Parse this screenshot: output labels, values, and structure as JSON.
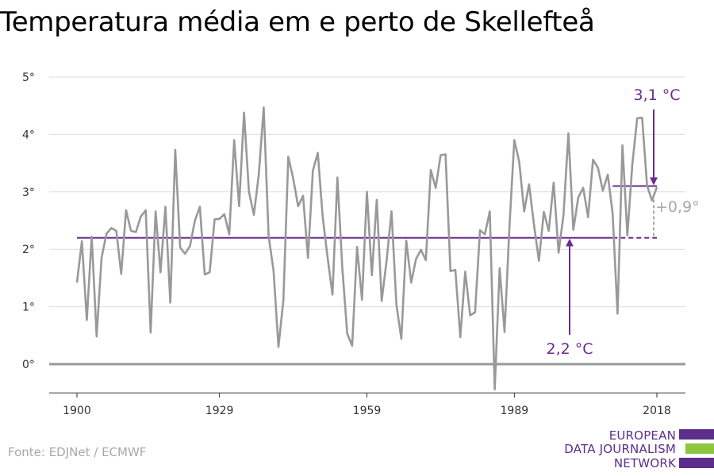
{
  "title": "Temperatura média em e perto de Skellefteå",
  "source": "Fonte: EDJNet / ECMWF",
  "logo": {
    "lines": [
      "EUROPEAN",
      "DATA JOURNALISM",
      "NETWORK"
    ],
    "colors": [
      "#5c2d8a",
      "#8dc63f",
      "#5c2d8a"
    ]
  },
  "colors": {
    "series": "#999999",
    "accent": "#6a2c91",
    "grid": "#dddddd",
    "zero_line": "#999999",
    "annotation_gray": "#a8a8a8"
  },
  "chart_data": {
    "type": "line",
    "title": "Temperatura média em e perto de Skellefteå",
    "ylim": [
      -0.5,
      5
    ],
    "xlim": [
      1900,
      2018
    ],
    "y_ticks": [
      0,
      1,
      2,
      3,
      4,
      5
    ],
    "y_tick_labels": [
      "0°",
      "1°",
      "2°",
      "3°",
      "4°",
      "5°"
    ],
    "x_ticks": [
      1900,
      1929,
      1959,
      1989,
      2018
    ],
    "x_tick_labels": [
      "1900",
      "1929",
      "1959",
      "1989",
      "2018"
    ],
    "grid": true,
    "series": [
      {
        "x": [
          1900,
          1901,
          1902,
          1903,
          1904,
          1905,
          1906,
          1907,
          1908,
          1909,
          1910,
          1911,
          1912,
          1913,
          1914,
          1915,
          1916,
          1917,
          1918,
          1919,
          1920,
          1921,
          1922,
          1923,
          1924,
          1925,
          1926,
          1927,
          1928,
          1929,
          1930,
          1931,
          1932,
          1933,
          1934,
          1935,
          1936,
          1937,
          1938,
          1939,
          1940,
          1941,
          1942,
          1943,
          1944,
          1945,
          1946,
          1947,
          1948,
          1949,
          1950,
          1951,
          1952,
          1953,
          1954,
          1955,
          1956,
          1957,
          1958,
          1959,
          1960,
          1961,
          1962,
          1963,
          1964,
          1965,
          1966,
          1967,
          1968,
          1969,
          1970,
          1971,
          1972,
          1973,
          1974,
          1975,
          1976,
          1977,
          1978,
          1979,
          1980,
          1981,
          1982,
          1983,
          1984,
          1985,
          1986,
          1987,
          1988,
          1989,
          1990,
          1991,
          1992,
          1993,
          1994,
          1995,
          1996,
          1997,
          1998,
          1999,
          2000,
          2001,
          2002,
          2003,
          2004,
          2005,
          2006,
          2007,
          2008,
          2009,
          2010,
          2011,
          2012,
          2013,
          2014,
          2015,
          2016,
          2017,
          2018
        ],
        "values": [
          1.42,
          2.14,
          0.77,
          2.22,
          0.48,
          1.85,
          2.27,
          2.37,
          2.32,
          1.57,
          2.68,
          2.32,
          2.3,
          2.57,
          2.68,
          0.55,
          2.66,
          1.6,
          2.74,
          1.07,
          3.73,
          2.03,
          1.92,
          2.06,
          2.5,
          2.74,
          1.56,
          1.6,
          2.52,
          2.53,
          2.61,
          2.26,
          3.9,
          2.75,
          4.38,
          3.0,
          2.6,
          3.3,
          4.47,
          2.23,
          1.63,
          0.3,
          1.11,
          3.61,
          3.23,
          2.75,
          2.93,
          1.85,
          3.37,
          3.68,
          2.57,
          1.86,
          1.21,
          3.25,
          1.67,
          0.53,
          0.32,
          2.04,
          1.12,
          3.0,
          1.55,
          2.86,
          1.1,
          1.8,
          2.66,
          1.03,
          0.44,
          2.15,
          1.42,
          1.83,
          1.99,
          1.81,
          3.38,
          3.07,
          3.64,
          3.65,
          1.62,
          1.64,
          0.47,
          1.61,
          0.85,
          0.9,
          2.33,
          2.26,
          2.66,
          -0.44,
          1.67,
          0.56,
          2.4,
          3.9,
          3.52,
          2.66,
          3.13,
          2.43,
          1.8,
          2.65,
          2.32,
          3.16,
          1.94,
          2.6,
          4.02,
          2.34,
          2.9,
          3.07,
          2.56,
          3.56,
          3.42,
          3.02,
          3.3,
          2.63,
          0.88,
          3.81,
          2.24,
          3.47,
          4.28,
          4.29,
          3.11,
          2.85,
          3.08
        ]
      }
    ],
    "reference_lines": [
      {
        "value": 2.2,
        "from": 1900,
        "to": 2018,
        "label": "2,2 °C"
      },
      {
        "value": 3.1,
        "from": 2009,
        "to": 2018,
        "label": "3,1 °C"
      }
    ],
    "difference_label": "+0,9°"
  }
}
